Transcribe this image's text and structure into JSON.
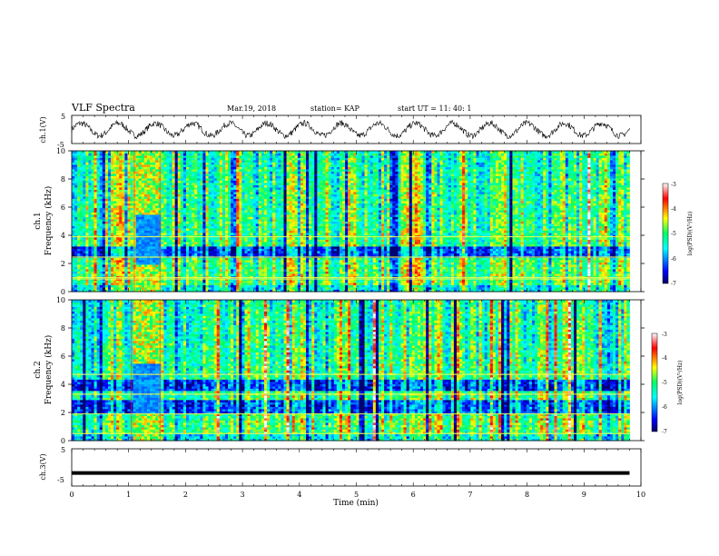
{
  "header": {
    "title": "VLF Spectra",
    "date": "Mar.19, 2018",
    "station": "station= KAP",
    "start_ut": "start  UT =   11: 40: 1"
  },
  "chart_data": [
    {
      "id": "ch1-waveform",
      "type": "line",
      "ylabel": "ch.1(V)",
      "ylim": [
        -5,
        5
      ],
      "y_ticks": [
        "5",
        "-5"
      ],
      "xlim": [
        0,
        10
      ],
      "series": [
        {
          "x_end": 9.8,
          "description_periods": 15,
          "amplitude_v": 2.2,
          "color": "#000000"
        }
      ]
    },
    {
      "id": "ch1-spectrogram",
      "type": "heatmap",
      "xlim": [
        0,
        10
      ],
      "ylim": [
        0,
        10
      ],
      "ylabel_top": "ch.1",
      "ylabel": "Frequency (kHz)",
      "y_ticks": [
        "0",
        "2",
        "4",
        "6",
        "8",
        "10"
      ],
      "colorbar": {
        "label": "log(PSD)(V²/Hz)",
        "ticks": [
          "-3",
          "-4",
          "-5",
          "-6",
          "-7"
        ],
        "range": [
          -7,
          -3
        ]
      },
      "bright_band_kHz": [
        0.9,
        1.0,
        2.45,
        3.9
      ],
      "dark_band_kHz": [
        [
          2.5,
          3.3
        ]
      ],
      "burst_min": [
        1.1,
        1.55
      ]
    },
    {
      "id": "ch2-spectrogram",
      "type": "heatmap",
      "xlim": [
        0,
        10
      ],
      "ylim": [
        0,
        10
      ],
      "ylabel_top": "ch.2",
      "ylabel": "Frequency (kHz)",
      "y_ticks": [
        "0",
        "2",
        "4",
        "6",
        "8",
        "10"
      ],
      "colorbar": {
        "label": "log(PSD)(V²/Hz)",
        "ticks": [
          "-3",
          "-4",
          "-5",
          "-6",
          "-7"
        ],
        "range": [
          -7,
          -3
        ]
      },
      "bright_band_kHz": [
        0.5,
        1.9,
        3.3,
        4.7
      ],
      "dark_band_kHz": [
        [
          2.0,
          2.9
        ],
        [
          3.6,
          4.3
        ]
      ],
      "burst_min": [
        1.05,
        1.55
      ]
    },
    {
      "id": "ch3-waveform",
      "type": "line",
      "ylabel": "ch.3(V)",
      "ylim": [
        -5,
        5
      ],
      "y_ticks": [
        "5",
        "-5"
      ],
      "xlim": [
        0,
        10
      ],
      "series": [
        {
          "x_end": 9.8,
          "y_value": -1.5,
          "color": "#000000"
        }
      ]
    }
  ],
  "x_axis": {
    "label": "Time (min)",
    "ticks": [
      "0",
      "1",
      "2",
      "3",
      "4",
      "5",
      "6",
      "7",
      "8",
      "9",
      "10"
    ]
  },
  "colors": {
    "jet_stops": [
      "#000080",
      "#0000ff",
      "#00ffff",
      "#00ff00",
      "#ffff00",
      "#ff0000",
      "#ffffff"
    ]
  }
}
